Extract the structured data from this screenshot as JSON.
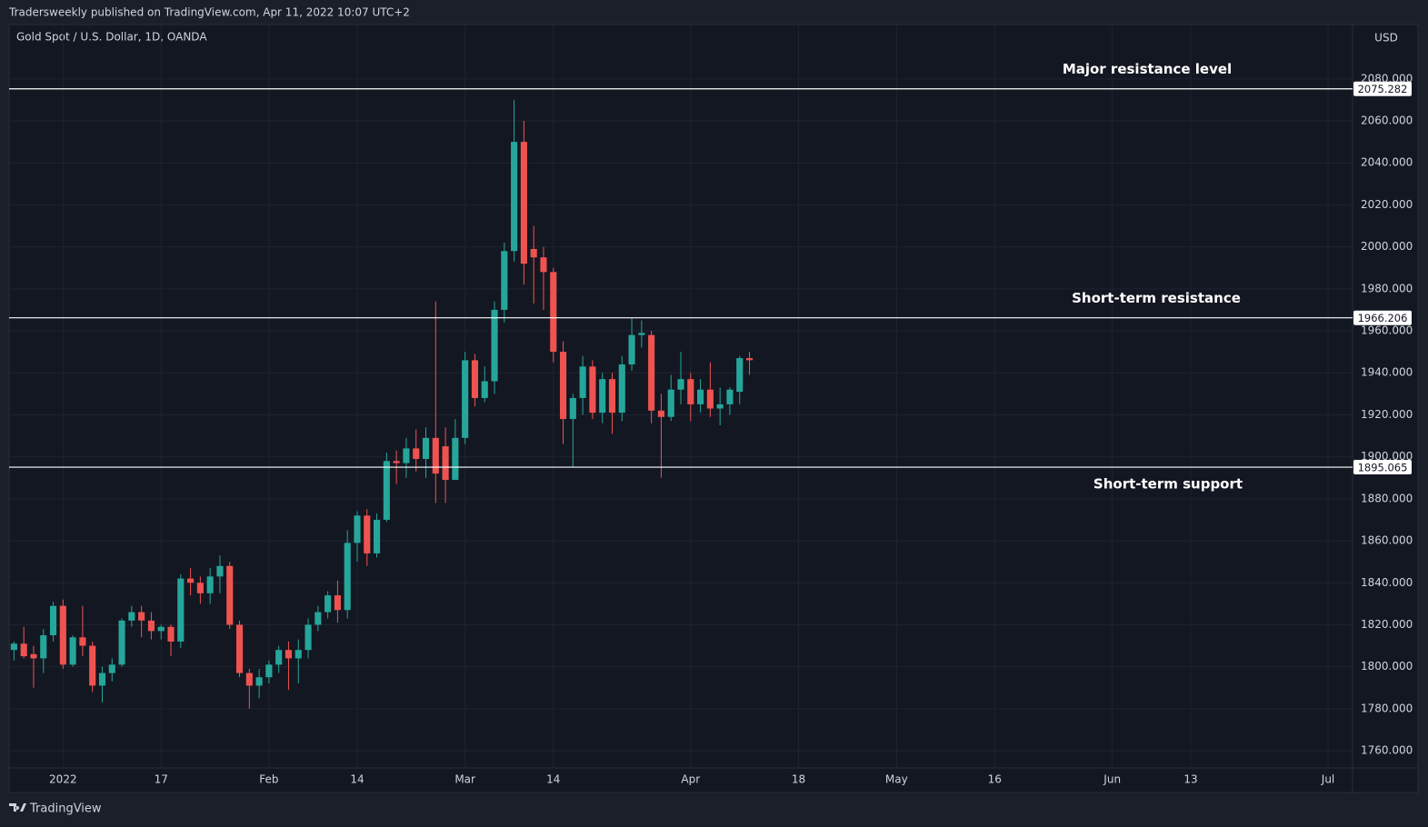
{
  "header": "Tradersweekly published on TradingView.com, Apr 11, 2022 10:07 UTC+2",
  "footer": "TradingView",
  "chart_data": {
    "type": "candlestick",
    "title": "Gold Spot / U.S. Dollar, 1D, OANDA",
    "currency": "USD",
    "up_color": "#26a69a",
    "down_color": "#ef5350",
    "grid": true,
    "x": [
      "2021-12-27",
      "2021-12-28",
      "2021-12-29",
      "2021-12-30",
      "2021-12-31",
      "2022-01-03",
      "2022-01-04",
      "2022-01-05",
      "2022-01-06",
      "2022-01-07",
      "2022-01-10",
      "2022-01-11",
      "2022-01-12",
      "2022-01-13",
      "2022-01-14",
      "2022-01-17",
      "2022-01-18",
      "2022-01-19",
      "2022-01-20",
      "2022-01-21",
      "2022-01-24",
      "2022-01-25",
      "2022-01-26",
      "2022-01-27",
      "2022-01-28",
      "2022-01-31",
      "2022-02-01",
      "2022-02-02",
      "2022-02-03",
      "2022-02-04",
      "2022-02-07",
      "2022-02-08",
      "2022-02-09",
      "2022-02-10",
      "2022-02-11",
      "2022-02-14",
      "2022-02-15",
      "2022-02-16",
      "2022-02-17",
      "2022-02-18",
      "2022-02-21",
      "2022-02-22",
      "2022-02-23",
      "2022-02-24",
      "2022-02-25",
      "2022-02-28",
      "2022-03-01",
      "2022-03-02",
      "2022-03-03",
      "2022-03-04",
      "2022-03-07",
      "2022-03-08",
      "2022-03-09",
      "2022-03-10",
      "2022-03-11",
      "2022-03-14",
      "2022-03-15",
      "2022-03-16",
      "2022-03-17",
      "2022-03-18",
      "2022-03-21",
      "2022-03-22",
      "2022-03-23",
      "2022-03-24",
      "2022-03-25",
      "2022-03-28",
      "2022-03-29",
      "2022-03-30",
      "2022-03-31",
      "2022-04-01",
      "2022-04-04",
      "2022-04-05",
      "2022-04-06",
      "2022-04-07",
      "2022-04-08",
      "2022-04-11"
    ],
    "open": [
      1808,
      1811,
      1806,
      1804,
      1815,
      1829,
      1801,
      1814,
      1810,
      1791,
      1797,
      1801,
      1822,
      1826,
      1822,
      1817,
      1819,
      1812,
      1842,
      1840,
      1835,
      1843,
      1848,
      1820,
      1797,
      1791,
      1795,
      1801,
      1808,
      1804,
      1808,
      1820,
      1826,
      1834,
      1827,
      1859,
      1872,
      1854,
      1870,
      1898,
      1897,
      1904,
      1899,
      1909,
      1905,
      1889,
      1909,
      1946,
      1928,
      1936,
      1970,
      1998,
      2050,
      1999,
      1995,
      1988,
      1950,
      1918,
      1928,
      1943,
      1921,
      1937,
      1921,
      1944,
      1958,
      1958,
      1922,
      1919,
      1932,
      1937,
      1925,
      1932,
      1923,
      1925,
      1931,
      1947
    ],
    "high": [
      1812,
      1819,
      1810,
      1818,
      1831,
      1832,
      1815,
      1829,
      1812,
      1800,
      1804,
      1823,
      1829,
      1829,
      1826,
      1820,
      1820,
      1844,
      1847,
      1843,
      1847,
      1853,
      1850,
      1822,
      1799,
      1799,
      1803,
      1810,
      1812,
      1813,
      1823,
      1829,
      1836,
      1841,
      1865,
      1874,
      1875,
      1873,
      1902,
      1903,
      1909,
      1913,
      1914,
      1974,
      1914,
      1918,
      1950,
      1949,
      1943,
      1974,
      2002,
      2070,
      2060,
      2010,
      2000,
      1990,
      1955,
      1930,
      1948,
      1946,
      1940,
      1940,
      1948,
      1966,
      1965,
      1960,
      1930,
      1939,
      1950,
      1940,
      1937,
      1945,
      1933,
      1933,
      1948,
      1950
    ],
    "low": [
      1803,
      1804,
      1790,
      1797,
      1812,
      1799,
      1800,
      1805,
      1788,
      1783,
      1793,
      1800,
      1819,
      1814,
      1813,
      1813,
      1805,
      1809,
      1834,
      1830,
      1830,
      1835,
      1818,
      1795,
      1780,
      1785,
      1792,
      1797,
      1789,
      1792,
      1804,
      1817,
      1823,
      1821,
      1823,
      1850,
      1848,
      1852,
      1869,
      1887,
      1890,
      1893,
      1890,
      1878,
      1878,
      1889,
      1906,
      1924,
      1926,
      1930,
      1964,
      1993,
      1982,
      1973,
      1970,
      1945,
      1906,
      1895,
      1920,
      1918,
      1916,
      1911,
      1917,
      1941,
      1952,
      1916,
      1890,
      1917,
      1925,
      1917,
      1921,
      1919,
      1915,
      1920,
      1925,
      1939
    ],
    "close": [
      1811,
      1805,
      1804,
      1815,
      1829,
      1801,
      1814,
      1810,
      1791,
      1797,
      1801,
      1822,
      1826,
      1822,
      1817,
      1819,
      1812,
      1842,
      1840,
      1835,
      1843,
      1848,
      1820,
      1797,
      1791,
      1795,
      1801,
      1808,
      1804,
      1808,
      1820,
      1826,
      1834,
      1827,
      1859,
      1872,
      1854,
      1870,
      1898,
      1897,
      1904,
      1899,
      1909,
      1892,
      1889,
      1909,
      1946,
      1928,
      1936,
      1970,
      1998,
      2050,
      1992,
      1995,
      1988,
      1950,
      1918,
      1928,
      1943,
      1921,
      1937,
      1921,
      1944,
      1958,
      1959,
      1922,
      1919,
      1932,
      1937,
      1925,
      1932,
      1923,
      1925,
      1932,
      1947,
      1946
    ],
    "xlim": [
      "2021-12-27",
      "2022-07-05"
    ],
    "xticks": [
      {
        "value": "2022-01-03",
        "label": "2022"
      },
      {
        "value": "2022-01-17",
        "label": "17"
      },
      {
        "value": "2022-02-01",
        "label": "Feb"
      },
      {
        "value": "2022-02-14",
        "label": "14"
      },
      {
        "value": "2022-03-01",
        "label": "Mar"
      },
      {
        "value": "2022-03-14",
        "label": "14"
      },
      {
        "value": "2022-04-01",
        "label": "Apr"
      },
      {
        "value": "2022-04-18",
        "label": "18"
      },
      {
        "value": "2022-05-02",
        "label": "May"
      },
      {
        "value": "2022-05-16",
        "label": "16"
      },
      {
        "value": "2022-06-01",
        "label": "Jun"
      },
      {
        "value": "2022-06-13",
        "label": "13"
      },
      {
        "value": "2022-07-01",
        "label": "Jul"
      }
    ],
    "ylim": [
      1751.8,
      2105.9
    ],
    "yticks": [
      {
        "value": 1760,
        "label": "1760.000"
      },
      {
        "value": 1780,
        "label": "1780.000"
      },
      {
        "value": 1800,
        "label": "1800.000"
      },
      {
        "value": 1820,
        "label": "1820.000"
      },
      {
        "value": 1840,
        "label": "1840.000"
      },
      {
        "value": 1860,
        "label": "1860.000"
      },
      {
        "value": 1880,
        "label": "1880.000"
      },
      {
        "value": 1900,
        "label": "1900.000"
      },
      {
        "value": 1920,
        "label": "1920.000"
      },
      {
        "value": 1940,
        "label": "1940.000"
      },
      {
        "value": 1960,
        "label": "1960.000"
      },
      {
        "value": 1980,
        "label": "1980.000"
      },
      {
        "value": 2000,
        "label": "2000.000"
      },
      {
        "value": 2020,
        "label": "2020.000"
      },
      {
        "value": 2040,
        "label": "2040.000"
      },
      {
        "value": 2060,
        "label": "2060.000"
      },
      {
        "value": 2080,
        "label": "2080.000"
      }
    ],
    "levels": [
      {
        "price": 2075.282,
        "note": "Major resistance level"
      },
      {
        "price": 1966.206,
        "note": "Short-term resistance"
      },
      {
        "price": 1895.065,
        "note": "Short-term support"
      }
    ]
  }
}
